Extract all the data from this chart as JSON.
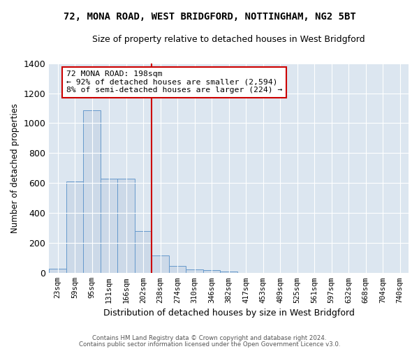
{
  "title": "72, MONA ROAD, WEST BRIDGFORD, NOTTINGHAM, NG2 5BT",
  "subtitle": "Size of property relative to detached houses in West Bridgford",
  "xlabel": "Distribution of detached houses by size in West Bridgford",
  "ylabel": "Number of detached properties",
  "bar_color": "#ccd9e8",
  "bar_edge_color": "#6699cc",
  "bg_color": "#dce6f0",
  "grid_color": "#ffffff",
  "categories": [
    "23sqm",
    "59sqm",
    "95sqm",
    "131sqm",
    "166sqm",
    "202sqm",
    "238sqm",
    "274sqm",
    "310sqm",
    "346sqm",
    "382sqm",
    "417sqm",
    "453sqm",
    "489sqm",
    "525sqm",
    "561sqm",
    "597sqm",
    "632sqm",
    "668sqm",
    "704sqm",
    "740sqm"
  ],
  "values": [
    28,
    610,
    1085,
    630,
    630,
    280,
    120,
    47,
    25,
    20,
    12,
    0,
    0,
    0,
    0,
    0,
    0,
    0,
    0,
    0,
    0
  ],
  "property_line_x": 5.5,
  "property_line_color": "#cc0000",
  "annotation_text": "72 MONA ROAD: 198sqm\n← 92% of detached houses are smaller (2,594)\n8% of semi-detached houses are larger (224) →",
  "annotation_box_color": "#ffffff",
  "annotation_box_edge": "#cc0000",
  "ylim": [
    0,
    1400
  ],
  "yticks": [
    0,
    200,
    400,
    600,
    800,
    1000,
    1200,
    1400
  ],
  "footer1": "Contains HM Land Registry data © Crown copyright and database right 2024.",
  "footer2": "Contains public sector information licensed under the Open Government Licence v3.0."
}
